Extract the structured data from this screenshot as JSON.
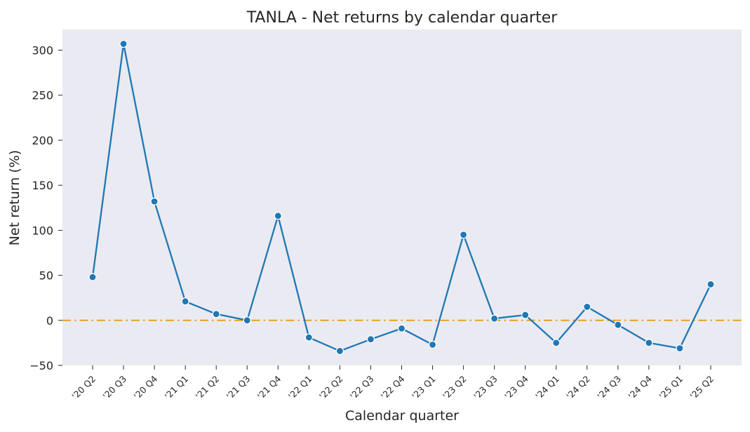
{
  "chart_data": {
    "type": "line",
    "title": "TANLA - Net returns by calendar quarter",
    "xlabel": "Calendar quarter",
    "ylabel": "Net return (%)",
    "categories": [
      "'20 Q2",
      "'20 Q3",
      "'20 Q4",
      "'21 Q1",
      "'21 Q2",
      "'21 Q3",
      "'21 Q4",
      "'22 Q1",
      "'22 Q2",
      "'22 Q3",
      "'22 Q4",
      "'23 Q1",
      "'23 Q2",
      "'23 Q3",
      "'23 Q4",
      "'24 Q1",
      "'24 Q2",
      "'24 Q3",
      "'24 Q4",
      "'25 Q1",
      "'25 Q2"
    ],
    "series": [
      {
        "values": [
          48,
          307,
          132,
          21,
          7,
          0,
          116,
          -19,
          -34,
          -21,
          -9,
          -27,
          95,
          2,
          6,
          -25,
          15,
          -5,
          -25,
          -31,
          40
        ]
      }
    ],
    "yticks": [
      -50,
      0,
      50,
      100,
      150,
      200,
      250,
      300
    ],
    "ylim": [
      -50,
      323
    ],
    "reference_line": {
      "y": 0,
      "style": "dash-dot",
      "color": "#e6a52a"
    },
    "line_color": "#1f77b4",
    "plot_background": "#eaeaf2",
    "grid": false,
    "legend": "none"
  }
}
